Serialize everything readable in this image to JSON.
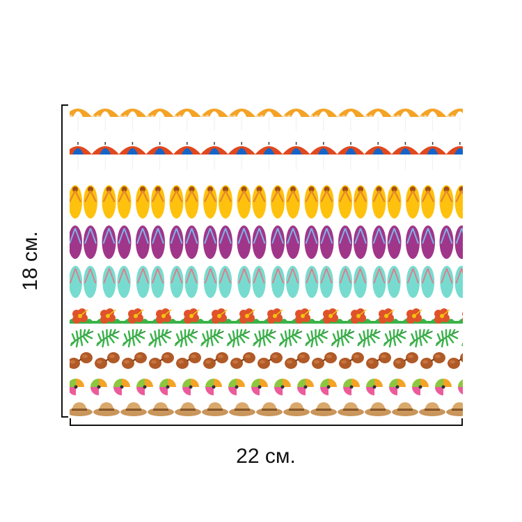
{
  "dimensions": {
    "height_label": "18 см.",
    "width_label": "22 см."
  },
  "pattern": {
    "rows": [
      {
        "name": "orange-beach-umbrella-row",
        "icon": "orange-umbrella-icon",
        "colors": {
          "primary": "#f4a326",
          "secondary": "#ffffff"
        }
      },
      {
        "name": "red-blue-beach-umbrella-row",
        "icon": "red-blue-umbrella-icon",
        "colors": {
          "primary": "#e0481e",
          "secondary": "#1565c8"
        }
      },
      {
        "name": "yellow-flip-flop-row",
        "icon": "yellow-flip-flop-icon",
        "colors": {
          "primary": "#fec20e",
          "secondary": "#e58a2a",
          "accent": "#a04d1a"
        }
      },
      {
        "name": "purple-flip-flop-row",
        "icon": "purple-flip-flop-icon",
        "colors": {
          "primary": "#a0368a",
          "secondary": "#7fb3e6"
        }
      },
      {
        "name": "teal-flip-flop-row",
        "icon": "teal-flip-flop-icon",
        "colors": {
          "primary": "#77dccf",
          "secondary": "#e07c8c"
        }
      },
      {
        "name": "hibiscus-flower-row",
        "icon": "hibiscus-icon",
        "colors": {
          "primary": "#e0522a",
          "secondary": "#3bb34a",
          "accent": "#f1c40f"
        }
      },
      {
        "name": "palm-leaf-row",
        "icon": "palm-leaf-icon",
        "colors": {
          "primary": "#3bb34a",
          "secondary": "#2e8b3d"
        }
      },
      {
        "name": "sunglasses-row",
        "icon": "sunglasses-icon",
        "colors": {
          "primary": "#b05a28",
          "secondary": "#7a3a14"
        }
      },
      {
        "name": "beach-ball-row",
        "icon": "beach-ball-icon",
        "colors": {
          "primary": "#f4a326",
          "secondary": "#8dc63f",
          "accent": "#ec5b9b"
        }
      },
      {
        "name": "straw-hat-row",
        "icon": "straw-hat-icon",
        "colors": {
          "primary": "#c9955a",
          "secondary": "#8a5a2b"
        }
      }
    ]
  }
}
